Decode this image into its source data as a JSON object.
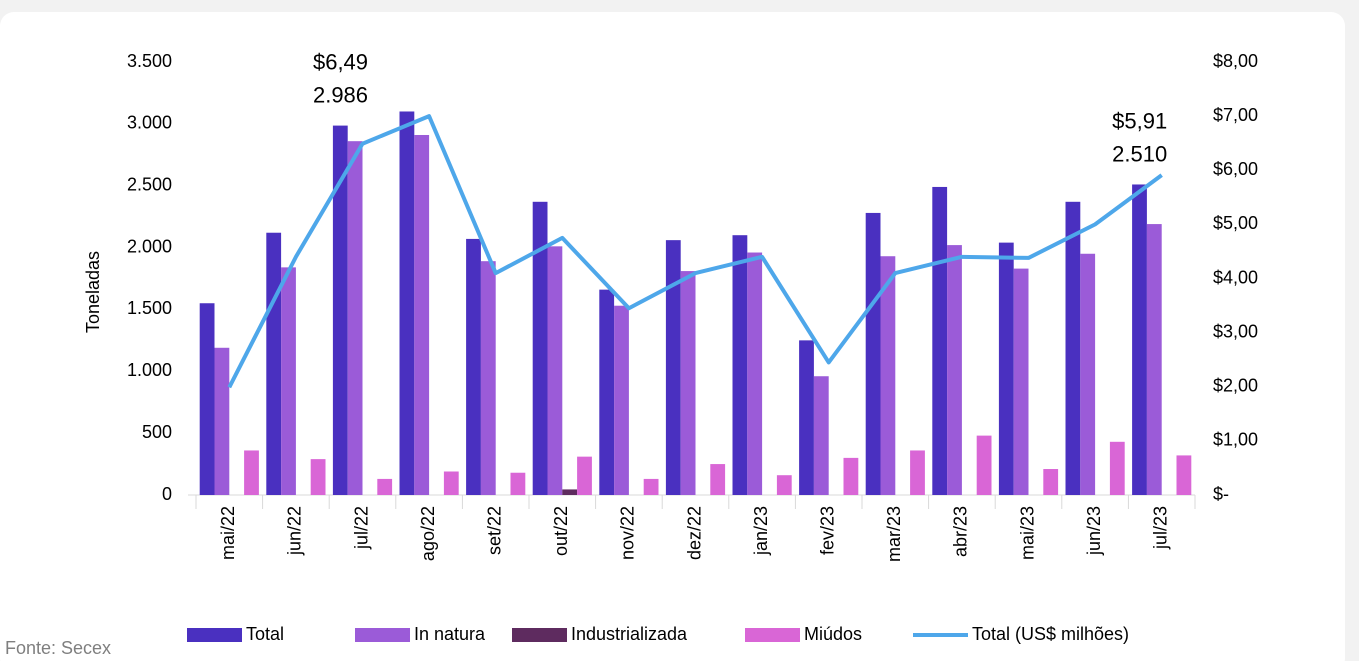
{
  "chart_data": {
    "type": "bar-line",
    "categories": [
      "mai/22",
      "jun/22",
      "jul/22",
      "ago/22",
      "set/22",
      "out/22",
      "nov/22",
      "dez/22",
      "jan/23",
      "fev/23",
      "mar/23",
      "abr/23",
      "mai/23",
      "jun/23",
      "jul/23"
    ],
    "series": [
      {
        "name": "Total",
        "type": "bar",
        "color": "#4a30c0",
        "values": [
          1550,
          2120,
          2986,
          3100,
          2070,
          2370,
          1660,
          2060,
          2100,
          1250,
          2280,
          2490,
          2040,
          2370,
          2510
        ],
        "value_labels": [
          null,
          null,
          "2.986",
          null,
          null,
          null,
          null,
          null,
          null,
          null,
          null,
          null,
          null,
          null,
          "2.510"
        ]
      },
      {
        "name": "In natura",
        "type": "bar",
        "color": "#9b5bd8",
        "values": [
          1190,
          1840,
          2860,
          2910,
          1890,
          2010,
          1530,
          1810,
          1960,
          960,
          1930,
          2020,
          1830,
          1950,
          2190
        ]
      },
      {
        "name": "Industrializada",
        "type": "bar",
        "color": "#5e2b5f",
        "values": [
          0,
          0,
          0,
          0,
          0,
          45,
          0,
          0,
          0,
          0,
          0,
          0,
          0,
          0,
          0
        ]
      },
      {
        "name": "Miúdos",
        "type": "bar",
        "color": "#d966d6",
        "values": [
          360,
          290,
          130,
          190,
          180,
          310,
          130,
          250,
          160,
          300,
          360,
          480,
          210,
          430,
          320
        ]
      },
      {
        "name": "Total (US$ milhões)",
        "type": "line",
        "axis": "y2",
        "color": "#4ea7ea",
        "values": [
          1.99,
          4.4,
          6.49,
          7.0,
          4.1,
          4.75,
          3.45,
          4.1,
          4.4,
          2.45,
          4.1,
          4.4,
          4.38,
          5.0,
          5.91
        ],
        "value_labels": [
          null,
          null,
          "$6,49",
          null,
          null,
          null,
          null,
          null,
          null,
          null,
          null,
          null,
          null,
          null,
          "$5,91"
        ]
      }
    ],
    "y_label": "Toneladas",
    "ylim": [
      0,
      3500
    ],
    "yticks": [
      0,
      500,
      {
        "value": 1000,
        "label": "1.000"
      },
      {
        "value": 1500,
        "label": "1.500"
      },
      {
        "value": 2000,
        "label": "2.000"
      },
      {
        "value": 2500,
        "label": "2.500"
      },
      {
        "value": 3000,
        "label": "3.000"
      },
      {
        "value": 3500,
        "label": "3.500"
      }
    ],
    "y2lim": [
      0,
      8
    ],
    "y2ticks": [
      {
        "value": 0,
        "label": "$-"
      },
      {
        "value": 1,
        "label": "$1,00"
      },
      {
        "value": 2,
        "label": "$2,00"
      },
      {
        "value": 3,
        "label": "$3,00"
      },
      {
        "value": 4,
        "label": "$4,00"
      },
      {
        "value": 5,
        "label": "$5,00"
      },
      {
        "value": 6,
        "label": "$6,00"
      },
      {
        "value": 7,
        "label": "$7,00"
      },
      {
        "value": 8,
        "label": "$8,00"
      }
    ],
    "legend": "bottom",
    "source": "Fonte: Secex"
  }
}
